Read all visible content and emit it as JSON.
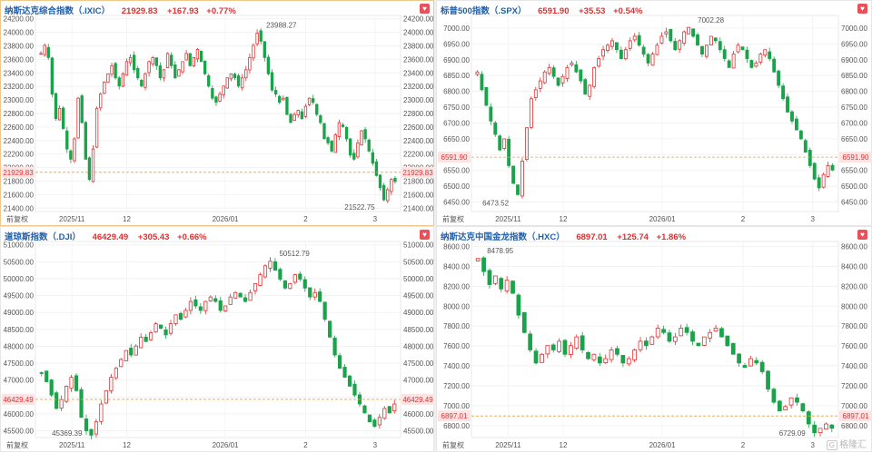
{
  "panels": [
    {
      "name": "纳斯达克综合指数（.IXIC）",
      "price": "21929.83",
      "change": "+167.93",
      "pct": "+0.77%",
      "current_label": "21929.83",
      "high_label": "23988.27",
      "low_label": "21522.75",
      "fq_label": "前复权",
      "x_ticks": [
        "2025/11",
        "12",
        "2026/01",
        "2",
        "3"
      ],
      "y_ticks": [
        "24200.00",
        "24000.00",
        "23800.00",
        "23600.00",
        "23400.00",
        "23200.00",
        "23000.00",
        "22800.00",
        "22600.00",
        "22400.00",
        "22200.00",
        "22000.00",
        "21800.00",
        "21600.00",
        "21400.00"
      ]
    },
    {
      "name": "标普500指数（.SPX）",
      "price": "6591.90",
      "change": "+35.53",
      "pct": "+0.54%",
      "current_label": "6591.90",
      "high_label": "7002.28",
      "low_label": "6473.52",
      "fq_label": "前复权",
      "x_ticks": [
        "2025/11",
        "12",
        "2026/01",
        "2",
        "3"
      ],
      "y_ticks": [
        "7000.00",
        "6950.00",
        "6900.00",
        "6850.00",
        "6800.00",
        "6750.00",
        "6700.00",
        "6650.00",
        "6600.00",
        "6550.00",
        "6500.00",
        "6450.00"
      ]
    },
    {
      "name": "道琼斯指数（.DJI）",
      "price": "46429.49",
      "change": "+305.43",
      "pct": "+0.66%",
      "current_label": "46429.49",
      "high_label": "50512.79",
      "low_label": "45369.39",
      "fq_label": "前复权",
      "x_ticks": [
        "2025/11",
        "12",
        "2026/01",
        "2",
        "3"
      ],
      "y_ticks": [
        "51000.00",
        "50500.00",
        "50000.00",
        "49500.00",
        "49000.00",
        "48500.00",
        "48000.00",
        "47500.00",
        "47000.00",
        "46500.00",
        "46000.00",
        "45500.00"
      ]
    },
    {
      "name": "纳斯达克中国金龙指数（.HXC）",
      "price": "6897.01",
      "change": "+125.74",
      "pct": "+1.86%",
      "current_label": "6897.01",
      "high_label": "8478.95",
      "low_label": "6729.09",
      "fq_label": "前复权",
      "x_ticks": [
        "2025/11",
        "12",
        "2026/01",
        "2",
        "3"
      ],
      "y_ticks": [
        "8600.00",
        "8400.00",
        "8200.00",
        "8000.00",
        "7800.00",
        "7600.00",
        "7400.00",
        "7200.00",
        "7000.00",
        "6800.00"
      ]
    }
  ],
  "watermark": "格隆汇",
  "chart_data": [
    {
      "type": "candlestick",
      "title": "纳斯达克综合指数（.IXIC）",
      "ylim": [
        21350,
        24250
      ],
      "up_color": "#e03030",
      "down_color": "#1aa34a",
      "current_value": 21929.83,
      "high_value": 23988.27,
      "low_value": 21522.75,
      "shape": [
        0.82,
        0.86,
        0.8,
        0.62,
        0.5,
        0.55,
        0.45,
        0.35,
        0.3,
        0.4,
        0.6,
        0.48,
        0.3,
        0.2,
        0.35,
        0.55,
        0.62,
        0.68,
        0.72,
        0.76,
        0.7,
        0.66,
        0.72,
        0.78,
        0.8,
        0.74,
        0.7,
        0.66,
        0.72,
        0.78,
        0.8,
        0.76,
        0.7,
        0.74,
        0.82,
        0.76,
        0.7,
        0.74,
        0.78,
        0.82,
        0.76,
        0.8,
        0.84,
        0.78,
        0.72,
        0.66,
        0.6,
        0.58,
        0.62,
        0.66,
        0.7,
        0.72,
        0.7,
        0.66,
        0.7,
        0.74,
        0.8,
        0.86,
        0.92,
        0.88,
        0.8,
        0.72,
        0.64,
        0.62,
        0.58,
        0.6,
        0.52,
        0.48,
        0.52,
        0.54,
        0.5,
        0.56,
        0.6,
        0.58,
        0.52,
        0.48,
        0.4,
        0.38,
        0.34,
        0.42,
        0.48,
        0.46,
        0.4,
        0.32,
        0.3,
        0.38,
        0.44,
        0.4,
        0.34,
        0.28,
        0.22,
        0.16,
        0.1,
        0.15,
        0.2,
        0.19
      ]
    },
    {
      "type": "candlestick",
      "title": "标普500指数（.SPX）",
      "ylim": [
        6420,
        7040
      ],
      "up_color": "#e03030",
      "down_color": "#1aa34a",
      "current_value": 6591.9,
      "high_value": 7002.28,
      "low_value": 6473.52,
      "shape": [
        0.7,
        0.62,
        0.55,
        0.48,
        0.42,
        0.35,
        0.4,
        0.28,
        0.2,
        0.15,
        0.3,
        0.45,
        0.58,
        0.62,
        0.66,
        0.7,
        0.72,
        0.68,
        0.64,
        0.68,
        0.72,
        0.74,
        0.7,
        0.66,
        0.6,
        0.64,
        0.72,
        0.76,
        0.8,
        0.82,
        0.84,
        0.8,
        0.76,
        0.8,
        0.84,
        0.86,
        0.82,
        0.78,
        0.74,
        0.78,
        0.82,
        0.86,
        0.88,
        0.84,
        0.8,
        0.84,
        0.88,
        0.9,
        0.86,
        0.82,
        0.78,
        0.82,
        0.86,
        0.84,
        0.8,
        0.76,
        0.72,
        0.78,
        0.82,
        0.8,
        0.76,
        0.72,
        0.74,
        0.78,
        0.8,
        0.76,
        0.7,
        0.64,
        0.58,
        0.52,
        0.48,
        0.44,
        0.4,
        0.34,
        0.28,
        0.22,
        0.18,
        0.24,
        0.28,
        0.26
      ]
    },
    {
      "type": "candlestick",
      "title": "道琼斯指数（.DJI）",
      "ylim": [
        45300,
        51100
      ],
      "up_color": "#e03030",
      "down_color": "#1aa34a",
      "current_value": 46429.49,
      "high_value": 50512.79,
      "low_value": 45369.39,
      "shape": [
        0.38,
        0.34,
        0.28,
        0.22,
        0.26,
        0.32,
        0.36,
        0.3,
        0.18,
        0.12,
        0.1,
        0.16,
        0.24,
        0.3,
        0.36,
        0.4,
        0.44,
        0.48,
        0.46,
        0.5,
        0.54,
        0.52,
        0.56,
        0.6,
        0.58,
        0.55,
        0.6,
        0.64,
        0.62,
        0.66,
        0.7,
        0.68,
        0.66,
        0.7,
        0.72,
        0.7,
        0.66,
        0.68,
        0.72,
        0.74,
        0.72,
        0.7,
        0.74,
        0.78,
        0.82,
        0.86,
        0.88,
        0.84,
        0.8,
        0.76,
        0.78,
        0.82,
        0.8,
        0.76,
        0.72,
        0.74,
        0.7,
        0.62,
        0.54,
        0.46,
        0.4,
        0.36,
        0.32,
        0.28,
        0.24,
        0.2,
        0.16,
        0.14,
        0.18,
        0.22,
        0.2,
        0.24
      ]
    },
    {
      "type": "candlestick",
      "title": "纳斯达克中国金龙指数（.HXC）",
      "ylim": [
        6680,
        8650
      ],
      "up_color": "#e03030",
      "down_color": "#1aa34a",
      "current_value": 6897.01,
      "high_value": 8478.95,
      "low_value": 6729.09,
      "shape": [
        0.88,
        0.82,
        0.76,
        0.8,
        0.74,
        0.78,
        0.72,
        0.62,
        0.54,
        0.46,
        0.4,
        0.44,
        0.48,
        0.46,
        0.5,
        0.44,
        0.48,
        0.52,
        0.46,
        0.42,
        0.44,
        0.4,
        0.42,
        0.46,
        0.44,
        0.4,
        0.42,
        0.46,
        0.5,
        0.48,
        0.52,
        0.56,
        0.54,
        0.5,
        0.52,
        0.56,
        0.54,
        0.5,
        0.48,
        0.52,
        0.54,
        0.56,
        0.52,
        0.48,
        0.44,
        0.4,
        0.38,
        0.42,
        0.4,
        0.36,
        0.28,
        0.22,
        0.18,
        0.2,
        0.24,
        0.22,
        0.18,
        0.12,
        0.08,
        0.1,
        0.12,
        0.1
      ]
    }
  ]
}
